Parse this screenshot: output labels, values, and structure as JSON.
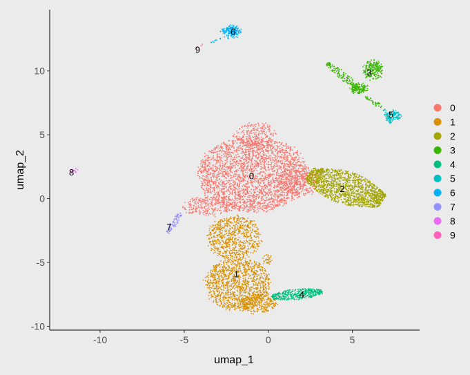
{
  "chart_data": {
    "type": "scatter",
    "xlabel": "umap_1",
    "ylabel": "umap_2",
    "xlim": [
      -13,
      9
    ],
    "ylim": [
      -10.3,
      14.8
    ],
    "x_ticks": [
      -10,
      -5,
      0,
      5
    ],
    "y_ticks": [
      -10,
      -5,
      0,
      5,
      10
    ],
    "grid": false,
    "legend_position": "right",
    "legend_title": "",
    "series": [
      {
        "name": "0",
        "color": "#F8766D",
        "center": [
          -0.9,
          1.8
        ],
        "label_pos": [
          -1.0,
          1.8
        ]
      },
      {
        "name": "1",
        "color": "#D89000",
        "center": [
          -1.8,
          -5.8
        ],
        "label_pos": [
          -1.9,
          -5.9
        ]
      },
      {
        "name": "2",
        "color": "#A3A500",
        "center": [
          4.5,
          1.2
        ],
        "label_pos": [
          4.4,
          0.8
        ]
      },
      {
        "name": "3",
        "color": "#39B600",
        "center": [
          5.6,
          9.4
        ],
        "label_pos": [
          6.0,
          9.9
        ]
      },
      {
        "name": "4",
        "color": "#00BF7D",
        "center": [
          2.0,
          -7.5
        ],
        "label_pos": [
          2.0,
          -7.5
        ]
      },
      {
        "name": "5",
        "color": "#00BFC4",
        "center": [
          7.2,
          6.5
        ],
        "label_pos": [
          7.3,
          6.6
        ]
      },
      {
        "name": "6",
        "color": "#00B0F6",
        "center": [
          -2.2,
          13.1
        ],
        "label_pos": [
          -2.1,
          13.1
        ]
      },
      {
        "name": "7",
        "color": "#9590FF",
        "center": [
          -5.9,
          -2.3
        ],
        "label_pos": [
          -5.9,
          -2.2
        ]
      },
      {
        "name": "8",
        "color": "#E76BF3",
        "center": [
          -11.6,
          2.2
        ],
        "label_pos": [
          -11.7,
          2.1
        ]
      },
      {
        "name": "9",
        "color": "#FF62BC",
        "center": [
          -4.2,
          11.8
        ],
        "label_pos": [
          -4.2,
          11.7
        ]
      }
    ]
  }
}
